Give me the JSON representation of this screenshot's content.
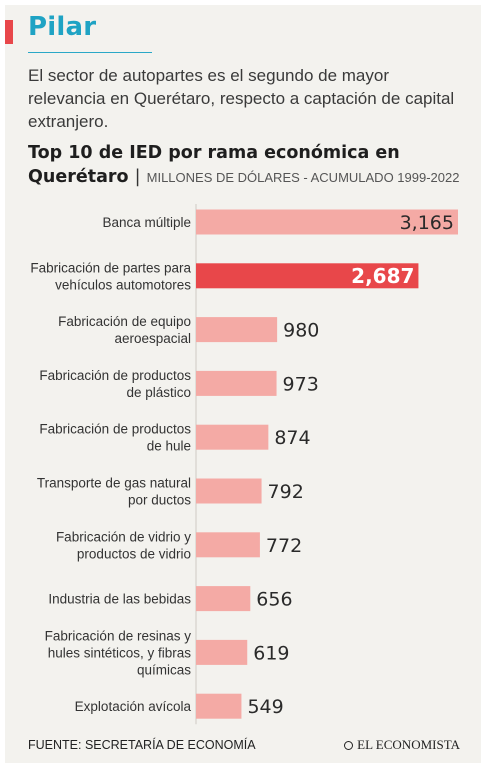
{
  "header": {
    "section": "Pilar",
    "intro": "El sector de autopartes es el segundo de mayor relevancia en Querétaro, respecto a captación de capital extranjero."
  },
  "chart_title": {
    "main": "Top 10 de IED por rama económica en Querétaro",
    "separator": "|",
    "sub": "MILLONES DE DÓLARES - ACUMULADO 1999-2022"
  },
  "colors": {
    "bar": "#f4aaa5",
    "highlight": "#e8474a",
    "accent": "#1fa3c4"
  },
  "chart_data": {
    "type": "bar",
    "orientation": "horizontal",
    "title": "Top 10 de IED por rama económica en Querétaro",
    "subtitle": "MILLONES DE DÓLARES - ACUMULADO 1999-2022",
    "categories": [
      [
        "Banca múltiple"
      ],
      [
        "Fabricación de partes para",
        "vehículos automotores"
      ],
      [
        "Fabricación de equipo",
        "aeroespacial"
      ],
      [
        "Fabricación de productos",
        "de plástico"
      ],
      [
        "Fabricación de productos",
        "de hule"
      ],
      [
        "Transporte de gas natural",
        "por ductos"
      ],
      [
        "Fabricación de vidrio y",
        "productos de vidrio"
      ],
      [
        "Industria de las bebidas"
      ],
      [
        "Fabricación de resinas y",
        "hules sintéticos, y fibras",
        "químicas"
      ],
      [
        "Explotación avícola"
      ]
    ],
    "values": [
      3165,
      2687,
      980,
      973,
      874,
      792,
      772,
      656,
      619,
      549
    ],
    "value_labels": [
      "3,165",
      "2,687",
      "980",
      "973",
      "874",
      "792",
      "772",
      "656",
      "619",
      "549"
    ],
    "highlight_index": 1,
    "xlim": [
      0,
      3165
    ],
    "grid": false
  },
  "footer": {
    "source": "FUENTE: SECRETARÍA DE ECONOMÍA",
    "logo": "EL ECONOMISTA"
  }
}
